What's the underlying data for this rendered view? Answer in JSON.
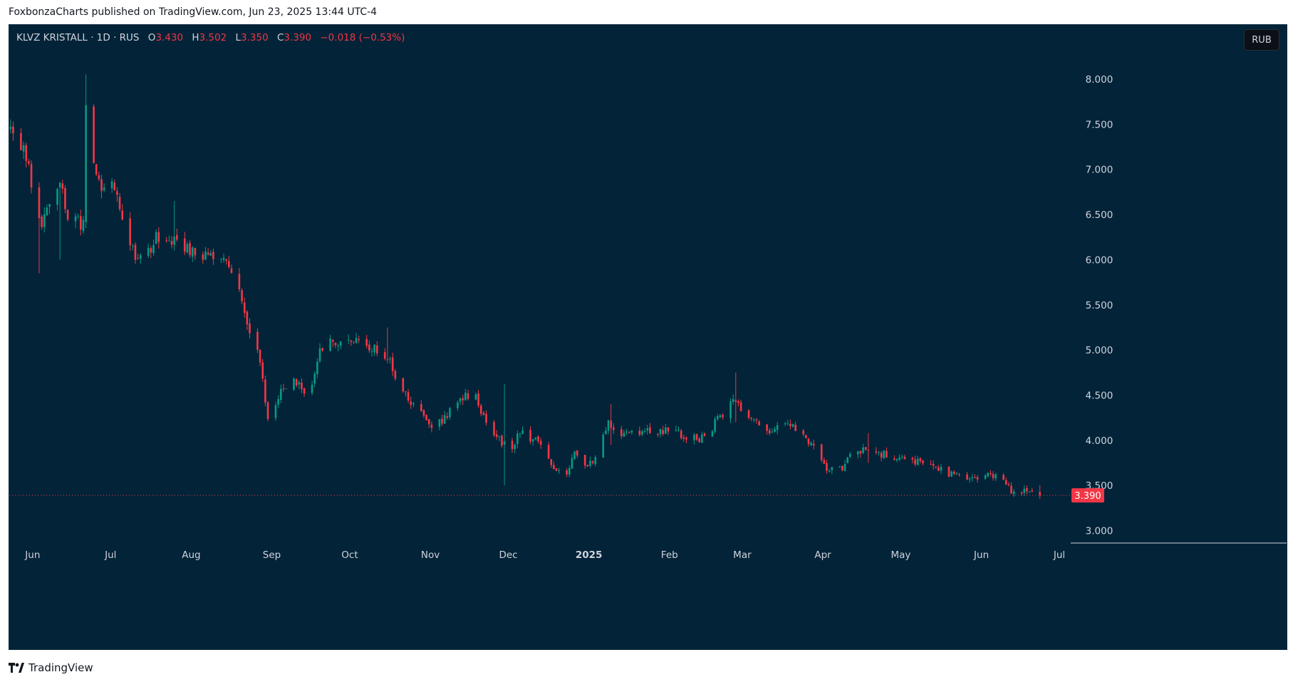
{
  "caption": "FoxbonzaCharts published on TradingView.com, Jun 23, 2025 13:44 UTC-4",
  "legend": {
    "symbol": "KLVZ KRISTALL · 1D · RUS",
    "o_label": "O",
    "o_value": "3.430",
    "h_label": "H",
    "h_value": "3.502",
    "l_label": "L",
    "l_value": "3.350",
    "c_label": "C",
    "c_value": "3.390",
    "change": "−0.018 (−0.53%)"
  },
  "currency_button": "RUB",
  "footer_brand": "TradingView",
  "colors": {
    "background": "#022338",
    "up": "#089981",
    "down": "#f23645",
    "axis_text": "#d1d4dc",
    "price_line": "#f23645"
  },
  "chart_data": {
    "type": "candlestick",
    "title": "",
    "xlabel": "",
    "ylabel": "",
    "currency": "RUB",
    "ylim": [
      2.9,
      8.5
    ],
    "xlim": [
      "2024-05-23",
      "2025-07-04"
    ],
    "grid": false,
    "y_ticks": [
      "3.000",
      "3.500",
      "4.000",
      "4.500",
      "5.000",
      "5.500",
      "6.000",
      "6.500",
      "7.000",
      "7.500",
      "8.000"
    ],
    "x_ticks": [
      {
        "label": "Jun",
        "date": "2024-06-01",
        "bold": false
      },
      {
        "label": "Jul",
        "date": "2024-07-01",
        "bold": false
      },
      {
        "label": "Aug",
        "date": "2024-08-01",
        "bold": false
      },
      {
        "label": "Sep",
        "date": "2024-09-01",
        "bold": false
      },
      {
        "label": "Oct",
        "date": "2024-10-01",
        "bold": false
      },
      {
        "label": "Nov",
        "date": "2024-11-01",
        "bold": false
      },
      {
        "label": "Dec",
        "date": "2024-12-01",
        "bold": false
      },
      {
        "label": "2025",
        "date": "2025-01-01",
        "bold": true
      },
      {
        "label": "Feb",
        "date": "2025-02-01",
        "bold": false
      },
      {
        "label": "Mar",
        "date": "2025-03-01",
        "bold": false
      },
      {
        "label": "Apr",
        "date": "2025-04-01",
        "bold": false
      },
      {
        "label": "May",
        "date": "2025-05-01",
        "bold": false
      },
      {
        "label": "Jun",
        "date": "2025-06-01",
        "bold": false
      },
      {
        "label": "Jul",
        "date": "2025-07-01",
        "bold": false
      }
    ],
    "last_price": 3.39,
    "last_price_label": "3.390",
    "anchors": [
      [
        "2024-05-23",
        7.45
      ],
      [
        "2024-05-28",
        7.25
      ],
      [
        "2024-06-01",
        6.75
      ],
      [
        "2024-06-04",
        6.35
      ],
      [
        "2024-06-08",
        6.75
      ],
      [
        "2024-06-11",
        6.9
      ],
      [
        "2024-06-14",
        6.45
      ],
      [
        "2024-06-20",
        6.4
      ],
      [
        "2024-06-21",
        7.8
      ],
      [
        "2024-06-24",
        7.1
      ],
      [
        "2024-06-27",
        6.8
      ],
      [
        "2024-07-01",
        6.9
      ],
      [
        "2024-07-05",
        6.4
      ],
      [
        "2024-07-10",
        6.05
      ],
      [
        "2024-07-14",
        6.0
      ],
      [
        "2024-07-18",
        6.25
      ],
      [
        "2024-07-24",
        6.2
      ],
      [
        "2024-07-30",
        6.1
      ],
      [
        "2024-08-08",
        6.05
      ],
      [
        "2024-08-14",
        6.0
      ],
      [
        "2024-08-18",
        5.75
      ],
      [
        "2024-08-22",
        5.3
      ],
      [
        "2024-08-27",
        4.9
      ],
      [
        "2024-08-30",
        4.2
      ],
      [
        "2024-09-03",
        4.5
      ],
      [
        "2024-09-10",
        4.65
      ],
      [
        "2024-09-15",
        4.45
      ],
      [
        "2024-09-18",
        4.9
      ],
      [
        "2024-09-22",
        5.15
      ],
      [
        "2024-09-27",
        5.05
      ],
      [
        "2024-10-05",
        5.1
      ],
      [
        "2024-10-10",
        5.0
      ],
      [
        "2024-10-16",
        4.85
      ],
      [
        "2024-10-22",
        4.5
      ],
      [
        "2024-10-28",
        4.3
      ],
      [
        "2024-10-31",
        4.15
      ],
      [
        "2024-11-06",
        4.25
      ],
      [
        "2024-11-13",
        4.45
      ],
      [
        "2024-11-17",
        4.55
      ],
      [
        "2024-11-20",
        4.3
      ],
      [
        "2024-11-25",
        4.05
      ],
      [
        "2024-11-29",
        3.95
      ],
      [
        "2024-12-01",
        3.75
      ],
      [
        "2024-12-04",
        4.1
      ],
      [
        "2024-12-08",
        4.05
      ],
      [
        "2024-12-14",
        3.95
      ],
      [
        "2024-12-18",
        3.7
      ],
      [
        "2024-12-22",
        3.6
      ],
      [
        "2024-12-26",
        3.85
      ],
      [
        "2024-12-30",
        3.7
      ],
      [
        "2025-01-04",
        3.85
      ],
      [
        "2025-01-08",
        4.2
      ],
      [
        "2025-01-12",
        4.0
      ],
      [
        "2025-01-18",
        4.1
      ],
      [
        "2025-01-25",
        4.1
      ],
      [
        "2025-02-01",
        4.1
      ],
      [
        "2025-02-06",
        4.05
      ],
      [
        "2025-02-12",
        4.0
      ],
      [
        "2025-02-17",
        4.15
      ],
      [
        "2025-02-21",
        4.3
      ],
      [
        "2025-02-25",
        4.5
      ],
      [
        "2025-03-01",
        4.3
      ],
      [
        "2025-03-06",
        4.2
      ],
      [
        "2025-03-12",
        4.1
      ],
      [
        "2025-03-18",
        4.2
      ],
      [
        "2025-03-24",
        4.1
      ],
      [
        "2025-03-28",
        3.9
      ],
      [
        "2025-04-02",
        3.65
      ],
      [
        "2025-04-08",
        3.7
      ],
      [
        "2025-04-13",
        3.9
      ],
      [
        "2025-04-20",
        3.87
      ],
      [
        "2025-04-28",
        3.82
      ],
      [
        "2025-05-02",
        3.78
      ],
      [
        "2025-05-08",
        3.75
      ],
      [
        "2025-05-14",
        3.72
      ],
      [
        "2025-05-20",
        3.62
      ],
      [
        "2025-05-26",
        3.55
      ],
      [
        "2025-05-30",
        3.6
      ],
      [
        "2025-06-05",
        3.62
      ],
      [
        "2025-06-08",
        3.55
      ],
      [
        "2025-06-12",
        3.45
      ],
      [
        "2025-06-18",
        3.42
      ],
      [
        "2025-06-23",
        3.39
      ]
    ],
    "spikes": [
      [
        "2024-06-21",
        8.05,
        6.35
      ],
      [
        "2024-06-03",
        6.6,
        5.85
      ],
      [
        "2024-06-11",
        6.8,
        6.0
      ],
      [
        "2024-07-25",
        6.65,
        6.1
      ],
      [
        "2024-09-22",
        5.35,
        4.85
      ],
      [
        "2024-10-15",
        5.25,
        4.9
      ],
      [
        "2024-11-29",
        4.62,
        3.5
      ],
      [
        "2025-01-09",
        4.4,
        3.95
      ],
      [
        "2025-02-26",
        4.75,
        4.2
      ],
      [
        "2025-04-18",
        4.08,
        3.75
      ]
    ]
  }
}
